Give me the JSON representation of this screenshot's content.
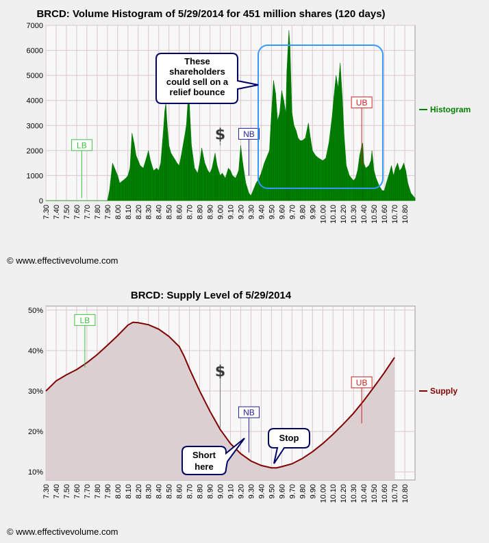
{
  "chart_data": [
    {
      "type": "bar",
      "title": "BRCD: Volume Histogram of 5/29/2014 for 451 million shares (120 days)",
      "xlabel": "",
      "ylabel": "",
      "xlim": [
        7.3,
        10.9
      ],
      "ylim": [
        0,
        7000
      ],
      "y_ticks": [
        0,
        1000,
        2000,
        3000,
        4000,
        5000,
        6000,
        7000
      ],
      "x_ticks": [
        "7.30",
        "7.40",
        "7.50",
        "7.60",
        "7.70",
        "7.80",
        "7.90",
        "8.00",
        "8.10",
        "8.20",
        "8.30",
        "8.40",
        "8.50",
        "8.60",
        "8.70",
        "8.80",
        "8.90",
        "9.00",
        "9.10",
        "9.20",
        "9.30",
        "9.40",
        "9.50",
        "9.60",
        "9.70",
        "9.80",
        "9.90",
        "10.00",
        "10.10",
        "10.20",
        "10.30",
        "10.40",
        "10.50",
        "10.60",
        "10.70",
        "10.80"
      ],
      "legend": {
        "placement": "right",
        "entries": [
          {
            "name": "Histogram",
            "color": "#008000"
          }
        ]
      },
      "series": [
        {
          "name": "Histogram",
          "color": "#008000",
          "points": [
            [
              7.3,
              0
            ],
            [
              7.9,
              0
            ],
            [
              7.92,
              400
            ],
            [
              7.95,
              1500
            ],
            [
              7.97,
              1300
            ],
            [
              8.0,
              1000
            ],
            [
              8.02,
              700
            ],
            [
              8.05,
              800
            ],
            [
              8.08,
              900
            ],
            [
              8.1,
              1000
            ],
            [
              8.12,
              1300
            ],
            [
              8.14,
              2700
            ],
            [
              8.16,
              2300
            ],
            [
              8.18,
              1800
            ],
            [
              8.2,
              1600
            ],
            [
              8.22,
              1400
            ],
            [
              8.25,
              1300
            ],
            [
              8.28,
              1700
            ],
            [
              8.3,
              2000
            ],
            [
              8.32,
              1600
            ],
            [
              8.35,
              1200
            ],
            [
              8.38,
              1300
            ],
            [
              8.4,
              1200
            ],
            [
              8.42,
              1500
            ],
            [
              8.44,
              2500
            ],
            [
              8.46,
              3600
            ],
            [
              8.47,
              3900
            ],
            [
              8.48,
              3200
            ],
            [
              8.5,
              2200
            ],
            [
              8.52,
              1900
            ],
            [
              8.55,
              1700
            ],
            [
              8.58,
              1500
            ],
            [
              8.6,
              1400
            ],
            [
              8.62,
              1800
            ],
            [
              8.65,
              2500
            ],
            [
              8.67,
              3000
            ],
            [
              8.69,
              4300
            ],
            [
              8.7,
              3800
            ],
            [
              8.72,
              2200
            ],
            [
              8.75,
              1300
            ],
            [
              8.78,
              1100
            ],
            [
              8.8,
              1500
            ],
            [
              8.82,
              2100
            ],
            [
              8.85,
              1500
            ],
            [
              8.88,
              1200
            ],
            [
              8.9,
              1100
            ],
            [
              8.92,
              1300
            ],
            [
              8.95,
              1900
            ],
            [
              8.97,
              1400
            ],
            [
              9.0,
              1000
            ],
            [
              9.02,
              1100
            ],
            [
              9.05,
              900
            ],
            [
              9.08,
              1300
            ],
            [
              9.1,
              1200
            ],
            [
              9.12,
              1000
            ],
            [
              9.15,
              900
            ],
            [
              9.18,
              1200
            ],
            [
              9.2,
              2200
            ],
            [
              9.22,
              1500
            ],
            [
              9.25,
              700
            ],
            [
              9.28,
              300
            ],
            [
              9.3,
              200
            ],
            [
              9.32,
              400
            ],
            [
              9.35,
              700
            ],
            [
              9.38,
              900
            ],
            [
              9.4,
              1100
            ],
            [
              9.43,
              1500
            ],
            [
              9.45,
              1700
            ],
            [
              9.48,
              2000
            ],
            [
              9.5,
              3500
            ],
            [
              9.52,
              4800
            ],
            [
              9.54,
              4300
            ],
            [
              9.56,
              3200
            ],
            [
              9.58,
              3500
            ],
            [
              9.6,
              4400
            ],
            [
              9.62,
              4000
            ],
            [
              9.64,
              3500
            ],
            [
              9.65,
              5200
            ],
            [
              9.66,
              6000
            ],
            [
              9.67,
              6800
            ],
            [
              9.68,
              6200
            ],
            [
              9.7,
              3500
            ],
            [
              9.72,
              3000
            ],
            [
              9.74,
              2800
            ],
            [
              9.76,
              2500
            ],
            [
              9.78,
              2400
            ],
            [
              9.8,
              2400
            ],
            [
              9.83,
              2500
            ],
            [
              9.86,
              3100
            ],
            [
              9.88,
              2500
            ],
            [
              9.9,
              2000
            ],
            [
              9.93,
              1800
            ],
            [
              9.96,
              1700
            ],
            [
              10.0,
              1600
            ],
            [
              10.03,
              1700
            ],
            [
              10.06,
              2300
            ],
            [
              10.09,
              3300
            ],
            [
              10.11,
              4200
            ],
            [
              10.13,
              5000
            ],
            [
              10.15,
              4500
            ],
            [
              10.17,
              5500
            ],
            [
              10.19,
              4200
            ],
            [
              10.21,
              2500
            ],
            [
              10.23,
              1400
            ],
            [
              10.26,
              1000
            ],
            [
              10.3,
              800
            ],
            [
              10.32,
              900
            ],
            [
              10.34,
              1200
            ],
            [
              10.36,
              1800
            ],
            [
              10.38,
              2200
            ],
            [
              10.39,
              2300
            ],
            [
              10.4,
              1500
            ],
            [
              10.42,
              1300
            ],
            [
              10.45,
              1400
            ],
            [
              10.47,
              1600
            ],
            [
              10.48,
              2000
            ],
            [
              10.5,
              1200
            ],
            [
              10.52,
              900
            ],
            [
              10.55,
              600
            ],
            [
              10.58,
              400
            ],
            [
              10.6,
              400
            ],
            [
              10.62,
              700
            ],
            [
              10.65,
              1100
            ],
            [
              10.67,
              1400
            ],
            [
              10.69,
              1000
            ],
            [
              10.71,
              1300
            ],
            [
              10.73,
              1500
            ],
            [
              10.75,
              1200
            ],
            [
              10.77,
              1300
            ],
            [
              10.79,
              1500
            ],
            [
              10.81,
              1200
            ],
            [
              10.83,
              700
            ],
            [
              10.86,
              300
            ],
            [
              10.9,
              100
            ]
          ]
        }
      ],
      "annotations": [
        {
          "label": "LB",
          "x": 7.65,
          "color": "#40c040",
          "label_y": 2000,
          "line_to": 100
        },
        {
          "label": "$",
          "x": 9.0,
          "label_y": 2550,
          "line_to": 2200
        },
        {
          "label": "NB",
          "x": 9.28,
          "color": "#2020a0",
          "label_y": 2450,
          "line_to": 1000
        },
        {
          "label": "UB",
          "x": 10.38,
          "color": "#d02020",
          "label_y": 3700,
          "line_to": 1400
        }
      ],
      "callout": {
        "lines": [
          "These",
          "shareholders",
          "could sell on a",
          "relief bounce"
        ]
      }
    },
    {
      "type": "area",
      "title": "BRCD: Supply Level of 5/29/2014",
      "xlabel": "",
      "ylabel": "",
      "xlim": [
        7.3,
        10.9
      ],
      "ylim": [
        8,
        51
      ],
      "y_ticks": [
        10,
        20,
        30,
        40,
        50
      ],
      "y_tick_labels": [
        "10%",
        "20%",
        "30%",
        "40%",
        "50%"
      ],
      "x_ticks": [
        "7.30",
        "7.40",
        "7.50",
        "7.60",
        "7.70",
        "7.80",
        "7.90",
        "8.00",
        "8.10",
        "8.20",
        "8.30",
        "8.40",
        "8.50",
        "8.60",
        "8.70",
        "8.80",
        "8.90",
        "9.00",
        "9.10",
        "9.20",
        "9.30",
        "9.40",
        "9.50",
        "9.60",
        "9.70",
        "9.80",
        "9.90",
        "10.00",
        "10.10",
        "10.20",
        "10.30",
        "10.40",
        "10.50",
        "10.60",
        "10.70",
        "10.80"
      ],
      "legend": {
        "placement": "right",
        "entries": [
          {
            "name": "Supply",
            "color": "#800000"
          }
        ]
      },
      "series": [
        {
          "name": "Supply",
          "color": "#800000",
          "points": [
            [
              7.3,
              30.0
            ],
            [
              7.4,
              32.5
            ],
            [
              7.5,
              34.0
            ],
            [
              7.6,
              35.3
            ],
            [
              7.7,
              37.0
            ],
            [
              7.8,
              39.0
            ],
            [
              7.9,
              41.3
            ],
            [
              8.0,
              43.7
            ],
            [
              8.1,
              46.3
            ],
            [
              8.15,
              47.0
            ],
            [
              8.2,
              46.9
            ],
            [
              8.3,
              46.4
            ],
            [
              8.4,
              45.3
            ],
            [
              8.5,
              43.5
            ],
            [
              8.6,
              41.0
            ],
            [
              8.65,
              38.5
            ],
            [
              8.7,
              35.5
            ],
            [
              8.8,
              30.0
            ],
            [
              8.9,
              25.0
            ],
            [
              9.0,
              20.5
            ],
            [
              9.1,
              17.0
            ],
            [
              9.2,
              14.5
            ],
            [
              9.3,
              12.7
            ],
            [
              9.4,
              11.6
            ],
            [
              9.5,
              11.0
            ],
            [
              9.55,
              11.0
            ],
            [
              9.6,
              11.3
            ],
            [
              9.7,
              12.0
            ],
            [
              9.8,
              13.3
            ],
            [
              9.9,
              15.0
            ],
            [
              10.0,
              17.0
            ],
            [
              10.1,
              19.3
            ],
            [
              10.2,
              21.8
            ],
            [
              10.3,
              24.5
            ],
            [
              10.4,
              27.6
            ],
            [
              10.5,
              31.0
            ],
            [
              10.6,
              34.5
            ],
            [
              10.7,
              38.3
            ]
          ]
        }
      ],
      "annotations": [
        {
          "label": "LB",
          "x": 7.68,
          "color": "#40c040",
          "label_y": 46.2,
          "line_to": 35.8
        },
        {
          "label": "$",
          "x": 9.0,
          "label_y": 34.3,
          "line_to": 21.0
        },
        {
          "label": "NB",
          "x": 9.28,
          "color": "#2020a0",
          "label_y": 23.4,
          "line_to": 14.8
        },
        {
          "label": "UB",
          "x": 10.38,
          "color": "#d02020",
          "label_y": 30.8,
          "line_to": 22.0
        }
      ],
      "callouts": [
        {
          "lines": [
            "Short",
            "here"
          ]
        },
        {
          "lines": [
            "Stop"
          ]
        }
      ]
    }
  ],
  "footer": {
    "copyright_top": "© www.effectivevolume.com",
    "copyright_bottom": "© www.effectivevolume.com"
  }
}
